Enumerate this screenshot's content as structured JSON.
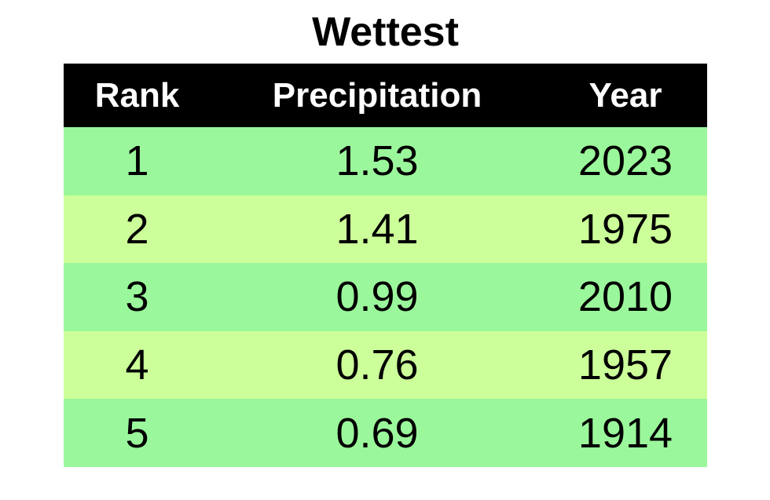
{
  "header": {
    "title": "Wettest"
  },
  "table": {
    "columns": [
      "Rank",
      "Precipitation",
      "Year"
    ],
    "rows": [
      [
        1,
        1.53,
        2023
      ],
      [
        2,
        1.41,
        1975
      ],
      [
        3,
        0.99,
        2010
      ],
      [
        4,
        0.76,
        1957
      ],
      [
        5,
        0.69,
        1914
      ]
    ]
  }
}
